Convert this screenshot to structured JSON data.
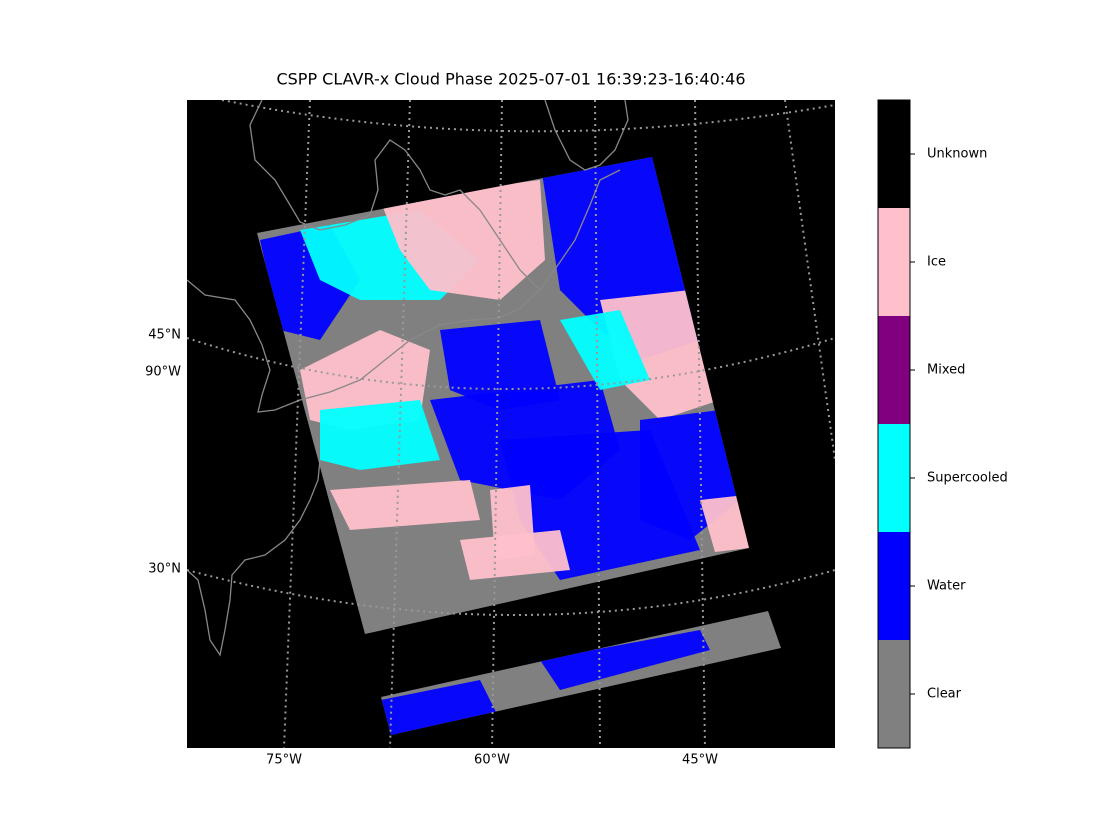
{
  "title": "CSPP CLAVR-x Cloud Phase 2025-07-01 16:39:23-16:40:46",
  "map": {
    "lat_labels": [
      "45°N",
      "90°W",
      "30°N"
    ],
    "lon_labels": [
      "75°W",
      "60°W",
      "45°W"
    ]
  },
  "colorbar": {
    "classes": [
      {
        "label": "Unknown",
        "color": "#000000"
      },
      {
        "label": "Ice",
        "color": "#ffc0cb"
      },
      {
        "label": "Mixed",
        "color": "#800080"
      },
      {
        "label": "Supercooled",
        "color": "#00ffff"
      },
      {
        "label": "Water",
        "color": "#0000ff"
      },
      {
        "label": "Clear",
        "color": "#808080"
      }
    ]
  }
}
